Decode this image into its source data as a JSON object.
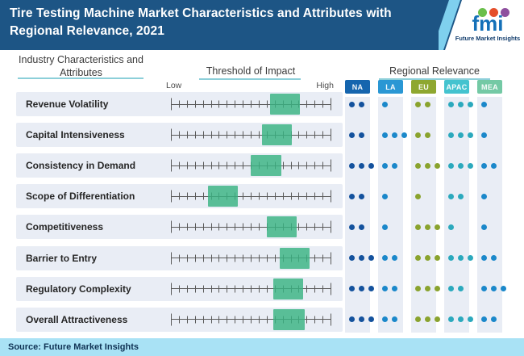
{
  "header": {
    "title": "Tire Testing Machine Market Characteristics and Attributes with Regional Relevance, 2021",
    "logo": {
      "brand": "fmi",
      "tagline": "Future Market Insights",
      "icons": [
        {
          "name": "chat-icon",
          "color": "#6abf4b"
        },
        {
          "name": "location-icon",
          "color": "#e54f2b"
        },
        {
          "name": "profile-icon",
          "color": "#8e4f9e"
        }
      ]
    }
  },
  "columns": {
    "attributes_header": "Industry Characteristics and Attributes",
    "impact_header": "Threshold of Impact",
    "impact_low_label": "Low",
    "impact_high_label": "High",
    "regional_header": "Regional Relevance",
    "regions": [
      {
        "code": "NA",
        "badge_color": "#1565ae",
        "dot_color": "#14529d"
      },
      {
        "code": "LA",
        "badge_color": "#2a97d4",
        "dot_color": "#1b88ca"
      },
      {
        "code": "EU",
        "badge_color": "#8ea730",
        "dot_color": "#8aa32e"
      },
      {
        "code": "APAC",
        "badge_color": "#44c3cf",
        "dot_color": "#2ba9bd"
      },
      {
        "code": "MEA",
        "badge_color": "#74c9a5",
        "dot_color": "#1b88ca"
      }
    ]
  },
  "rows": [
    {
      "label": "Revenue Volatility",
      "impact_low": 0.62,
      "impact_high": 0.81,
      "relevance": [
        2,
        1,
        2,
        3,
        1
      ]
    },
    {
      "label": "Capital Intensiveness",
      "impact_low": 0.57,
      "impact_high": 0.76,
      "relevance": [
        2,
        3,
        2,
        3,
        1
      ]
    },
    {
      "label": "Consistency in Demand",
      "impact_low": 0.5,
      "impact_high": 0.69,
      "relevance": [
        3,
        2,
        3,
        3,
        2
      ]
    },
    {
      "label": "Scope of Differentiation",
      "impact_low": 0.23,
      "impact_high": 0.42,
      "relevance": [
        2,
        1,
        1,
        2,
        1
      ]
    },
    {
      "label": "Competitiveness",
      "impact_low": 0.6,
      "impact_high": 0.79,
      "relevance": [
        2,
        1,
        3,
        1,
        1
      ]
    },
    {
      "label": "Barrier to Entry",
      "impact_low": 0.68,
      "impact_high": 0.87,
      "relevance": [
        3,
        2,
        3,
        3,
        2
      ]
    },
    {
      "label": "Regulatory Complexity",
      "impact_low": 0.64,
      "impact_high": 0.83,
      "relevance": [
        3,
        2,
        3,
        2,
        3
      ]
    },
    {
      "label": "Overall Attractiveness",
      "impact_low": 0.64,
      "impact_high": 0.84,
      "relevance": [
        3,
        2,
        3,
        3,
        2
      ]
    }
  ],
  "footer": {
    "source": "Source: Future Market Insights"
  },
  "palette": {
    "header_bg": "#1d5585",
    "row_bg": "#e9edf5",
    "impact_box": "#39b383",
    "underline": "#8ccfd9",
    "footer_bg": "#a9e2f5",
    "scale_ink": "#5a5a5a"
  },
  "chart_data": {
    "type": "table",
    "title": "Tire Testing Machine Market Characteristics and Attributes with Regional Relevance, 2021",
    "columns": [
      "Industry Characteristics and Attributes",
      "Threshold of Impact (0=Low, 1=High)",
      "NA",
      "LA",
      "EU",
      "APAC",
      "MEA"
    ],
    "impact_axis": {
      "min_label": "Low",
      "max_label": "High",
      "range": [
        0,
        1
      ],
      "tick_intervals": 20
    },
    "relevance_scale": "dot count 1-3, more dots = higher regional relevance",
    "rows": [
      {
        "attribute": "Revenue Volatility",
        "impact_range": [
          0.62,
          0.81
        ],
        "regional_relevance": {
          "NA": 2,
          "LA": 1,
          "EU": 2,
          "APAC": 3,
          "MEA": 1
        }
      },
      {
        "attribute": "Capital Intensiveness",
        "impact_range": [
          0.57,
          0.76
        ],
        "regional_relevance": {
          "NA": 2,
          "LA": 3,
          "EU": 2,
          "APAC": 3,
          "MEA": 1
        }
      },
      {
        "attribute": "Consistency in Demand",
        "impact_range": [
          0.5,
          0.69
        ],
        "regional_relevance": {
          "NA": 3,
          "LA": 2,
          "EU": 3,
          "APAC": 3,
          "MEA": 2
        }
      },
      {
        "attribute": "Scope of Differentiation",
        "impact_range": [
          0.23,
          0.42
        ],
        "regional_relevance": {
          "NA": 2,
          "LA": 1,
          "EU": 1,
          "APAC": 2,
          "MEA": 1
        }
      },
      {
        "attribute": "Competitiveness",
        "impact_range": [
          0.6,
          0.79
        ],
        "regional_relevance": {
          "NA": 2,
          "LA": 1,
          "EU": 3,
          "APAC": 1,
          "MEA": 1
        }
      },
      {
        "attribute": "Barrier to Entry",
        "impact_range": [
          0.68,
          0.87
        ],
        "regional_relevance": {
          "NA": 3,
          "LA": 2,
          "EU": 3,
          "APAC": 3,
          "MEA": 2
        }
      },
      {
        "attribute": "Regulatory Complexity",
        "impact_range": [
          0.64,
          0.83
        ],
        "regional_relevance": {
          "NA": 3,
          "LA": 2,
          "EU": 3,
          "APAC": 2,
          "MEA": 3
        }
      },
      {
        "attribute": "Overall Attractiveness",
        "impact_range": [
          0.64,
          0.84
        ],
        "regional_relevance": {
          "NA": 3,
          "LA": 2,
          "EU": 3,
          "APAC": 3,
          "MEA": 2
        }
      }
    ]
  }
}
